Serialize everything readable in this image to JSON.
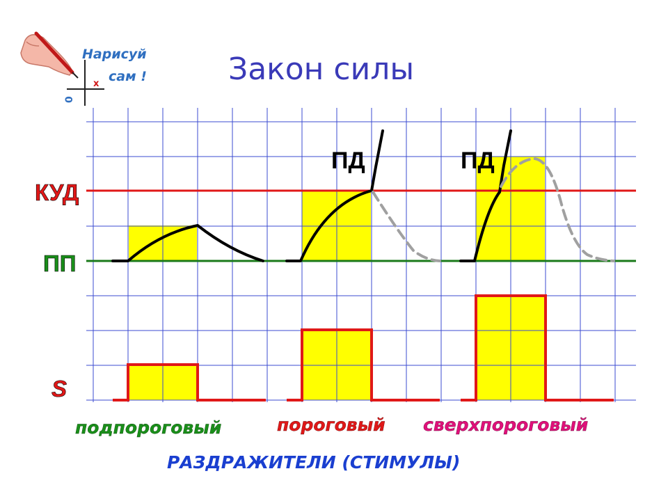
{
  "title": "Закон силы",
  "logo": {
    "line1": "Нарисуй",
    "line2": "сам !",
    "icon": "hand-with-pen-drawing-axes"
  },
  "levels": {
    "threshold": "КУД",
    "resting": "ПП",
    "stimulus": "S"
  },
  "action_potential_label": "ПД",
  "stimuli": [
    {
      "label": "подпороговый",
      "color": "#1a8f1a",
      "response": "local"
    },
    {
      "label": "пороговый",
      "color": "#e01818",
      "response": "action-potential"
    },
    {
      "label": "сверхпороговый",
      "color": "#e0107a",
      "response": "action-potential"
    }
  ],
  "footer": "РАЗДРАЖИТЕЛИ (СТИМУЛЫ)",
  "colors": {
    "grid": "#3b4bd0",
    "threshold_line": "#e01818",
    "resting_line": "#1a7a1a",
    "fill": "#ffff00",
    "stimulus_pulse": "#e01818",
    "potential_curve": "#000000",
    "dashed_repolarization": "#a0a0a0"
  }
}
